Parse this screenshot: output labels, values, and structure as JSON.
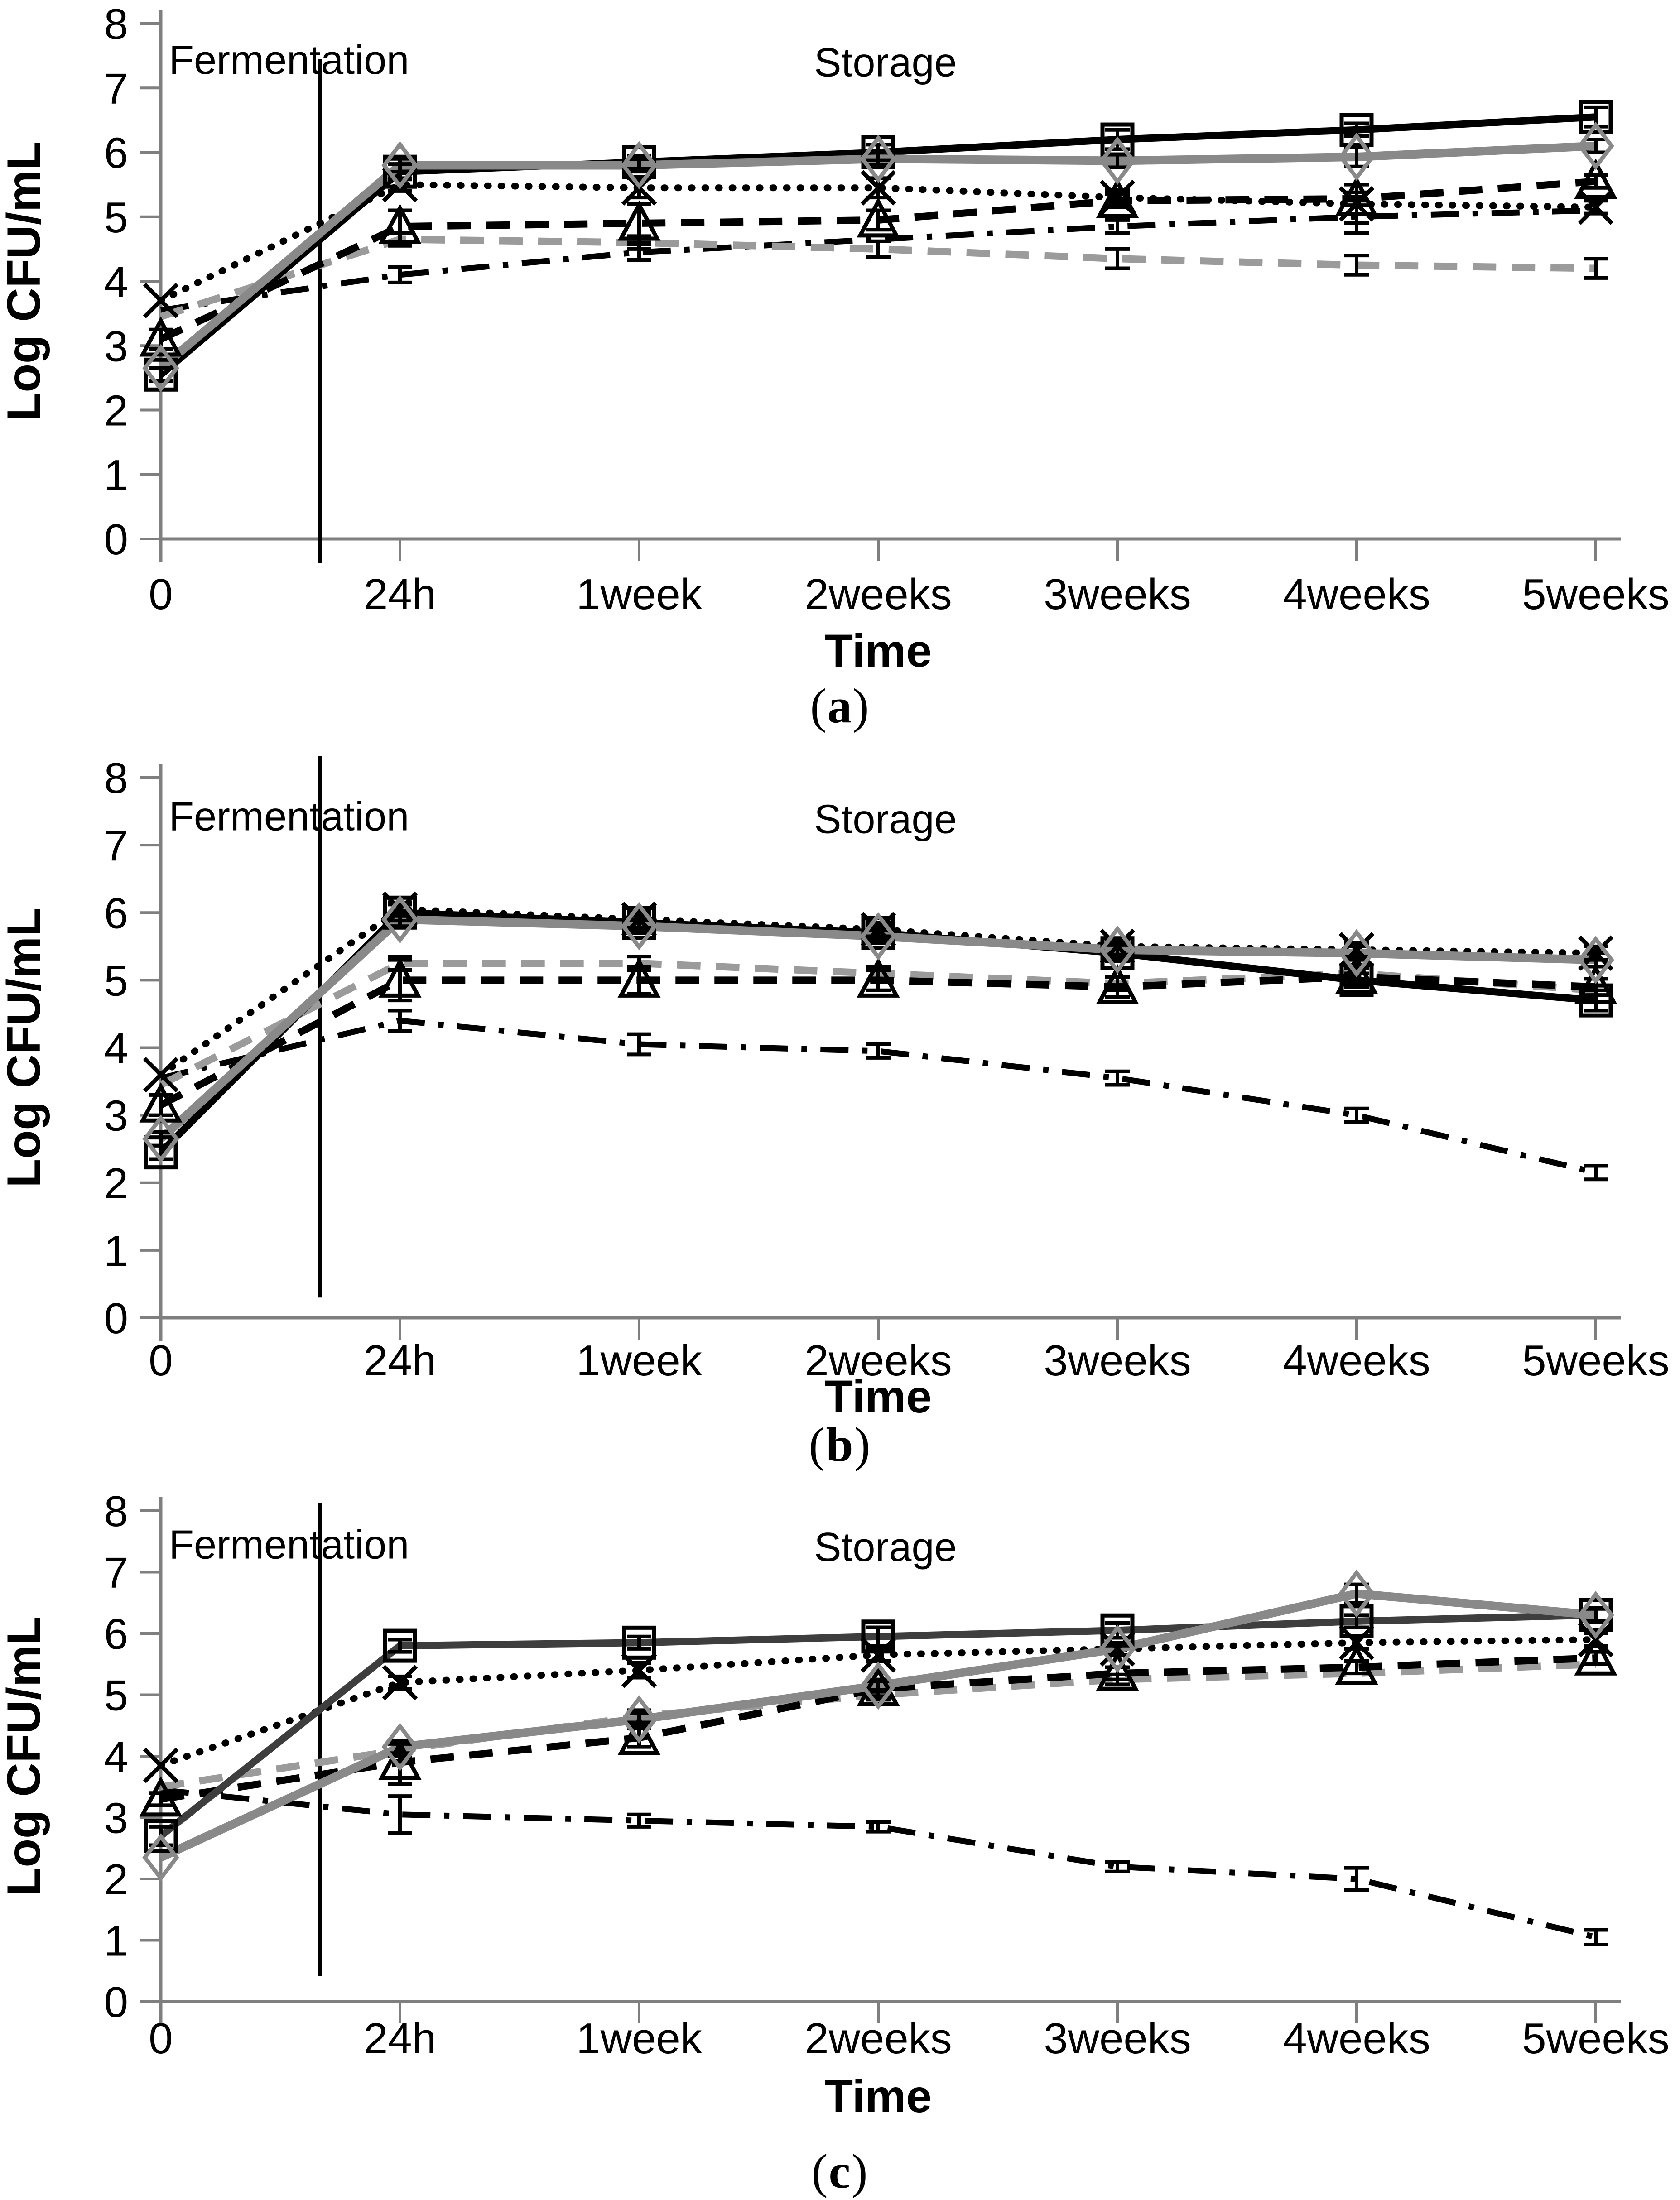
{
  "page": {
    "background": "#ffffff"
  },
  "axis_colors": {
    "axis_line": "#7f7f7f",
    "divider_line": "#000000",
    "error_bar": "#000000"
  },
  "chart_data": [
    {
      "id": "a",
      "type": "line",
      "caption": "(a)",
      "cap_open": "(",
      "caption_letter": "a",
      "cap_close": ")",
      "xlabel": "Time",
      "ylabel": "Log CFU/mL",
      "annotations": {
        "fermentation": "Fermentation",
        "storage": "Storage"
      },
      "categories": [
        "0",
        "24h",
        "1week",
        "2weeks",
        "3weeks",
        "4weeks",
        "5weeks"
      ],
      "yticks": [
        0,
        1,
        2,
        3,
        4,
        5,
        6,
        7,
        8
      ],
      "ylim": [
        0,
        8
      ],
      "legend": "none",
      "grid": "off",
      "series": [
        {
          "name": "solid-black-open-square",
          "line": "solid",
          "marker": "square",
          "color": "#000000",
          "values": [
            2.55,
            5.7,
            5.85,
            6.0,
            6.2,
            6.35,
            6.55
          ],
          "err": [
            0.1,
            0.12,
            0.1,
            0.12,
            0.15,
            0.1,
            0.15
          ]
        },
        {
          "name": "solid-gray-open-diamond",
          "line": "solid",
          "marker": "diamond",
          "color": "#898989",
          "values": [
            2.65,
            5.8,
            5.8,
            5.9,
            5.87,
            5.93,
            6.1
          ],
          "err": [
            0,
            0.1,
            0.1,
            0.1,
            0.1,
            0.15,
            0.1
          ]
        },
        {
          "name": "dotted-black-x",
          "line": "dotted",
          "marker": "x",
          "color": "#000000",
          "values": [
            3.7,
            5.5,
            5.45,
            5.45,
            5.3,
            5.2,
            5.15
          ],
          "err": [
            0,
            0.1,
            0.15,
            0.15,
            0.12,
            0.3,
            0.1
          ]
        },
        {
          "name": "dashed-black-open-triangle",
          "line": "dashed",
          "marker": "triangle",
          "color": "#000000",
          "values": [
            3.1,
            4.85,
            4.9,
            4.95,
            5.25,
            5.28,
            5.55
          ],
          "err": [
            0.15,
            0.25,
            0.3,
            0.15,
            0.1,
            0.1,
            0.1
          ]
        },
        {
          "name": "dashed-gray",
          "line": "dashed",
          "marker": "none",
          "color": "#9b9b9b",
          "values": [
            3.45,
            4.65,
            4.6,
            4.5,
            4.35,
            4.25,
            4.2
          ],
          "err": [
            0,
            0.1,
            0.1,
            0.12,
            0.15,
            0.15,
            0.15
          ]
        },
        {
          "name": "dash-dot-black",
          "line": "dashdot",
          "marker": "none",
          "color": "#000000",
          "values": [
            3.55,
            4.1,
            4.45,
            4.65,
            4.85,
            5.0,
            5.1
          ],
          "err": [
            0,
            0.12,
            0.12,
            0,
            0.1,
            0.25,
            0
          ]
        }
      ]
    },
    {
      "id": "b",
      "type": "line",
      "caption": "(b)",
      "cap_open": "(",
      "caption_letter": "b",
      "cap_close": ")",
      "xlabel": "Time",
      "ylabel": "Log CFU/mL",
      "annotations": {
        "fermentation": "Fermentation",
        "storage": "Storage"
      },
      "categories": [
        "0",
        "24h",
        "1week",
        "2weeks",
        "3weeks",
        "4weeks",
        "5weeks"
      ],
      "yticks": [
        0,
        1,
        2,
        3,
        4,
        5,
        6,
        7,
        8
      ],
      "ylim": [
        0,
        8
      ],
      "legend": "none",
      "grid": "off",
      "series": [
        {
          "name": "solid-black-open-square",
          "line": "solid",
          "marker": "square",
          "color": "#000000",
          "values": [
            2.45,
            6.0,
            5.85,
            5.7,
            5.4,
            5.0,
            4.7
          ],
          "err": [
            0.1,
            0.12,
            0.12,
            0.1,
            0.12,
            0.1,
            0.15
          ]
        },
        {
          "name": "solid-gray-open-diamond",
          "line": "solid",
          "marker": "diamond",
          "color": "#898989",
          "values": [
            2.65,
            5.9,
            5.8,
            5.65,
            5.45,
            5.4,
            5.3
          ],
          "err": [
            0.1,
            0.1,
            0.1,
            0.1,
            0.12,
            0.1,
            0.1
          ]
        },
        {
          "name": "dotted-black-x",
          "line": "dotted",
          "marker": "x",
          "color": "#000000",
          "values": [
            3.6,
            6.05,
            5.9,
            5.75,
            5.5,
            5.45,
            5.4
          ],
          "err": [
            0,
            0.1,
            0.12,
            0.1,
            0.12,
            0.1,
            0.1
          ]
        },
        {
          "name": "dashed-black-open-triangle",
          "line": "dashed",
          "marker": "triangle",
          "color": "#000000",
          "values": [
            3.15,
            5.0,
            5.0,
            5.0,
            4.9,
            5.05,
            4.9
          ],
          "err": [
            0.15,
            0.3,
            0.2,
            0.15,
            0.15,
            0.12,
            0.12
          ]
        },
        {
          "name": "dashed-gray",
          "line": "dashed",
          "marker": "none",
          "color": "#9b9b9b",
          "values": [
            3.45,
            5.25,
            5.25,
            5.1,
            4.95,
            5.1,
            4.85
          ],
          "err": [
            0,
            0.1,
            0.1,
            0.1,
            0.1,
            0,
            0
          ]
        },
        {
          "name": "dash-dot-black",
          "line": "dashdot",
          "marker": "none",
          "color": "#000000",
          "values": [
            3.55,
            4.4,
            4.05,
            3.95,
            3.55,
            3.0,
            2.15
          ],
          "err": [
            0,
            0.15,
            0.15,
            0.1,
            0.1,
            0.1,
            0.1
          ]
        }
      ]
    },
    {
      "id": "c",
      "type": "line",
      "caption": "(c)",
      "cap_open": "(",
      "caption_letter": "c",
      "cap_close": ")",
      "xlabel": "Time",
      "ylabel": "Log CFU/mL",
      "annotations": {
        "fermentation": "Fermentation",
        "storage": "Storage"
      },
      "categories": [
        "0",
        "24h",
        "1week",
        "2weeks",
        "3weeks",
        "4weeks",
        "5weeks"
      ],
      "yticks": [
        0,
        1,
        2,
        3,
        4,
        5,
        6,
        7,
        8
      ],
      "ylim": [
        0,
        8
      ],
      "legend": "none",
      "grid": "off",
      "series": [
        {
          "name": "solid-darkgray-open-square",
          "line": "solid",
          "marker": "square",
          "color": "#3e3e3e",
          "values": [
            2.7,
            5.8,
            5.85,
            5.95,
            6.05,
            6.2,
            6.3
          ],
          "err": [
            0.15,
            0.1,
            0.1,
            0.15,
            0.12,
            0.1,
            0.12
          ]
        },
        {
          "name": "solid-gray-open-diamond",
          "line": "solid",
          "marker": "diamond",
          "color": "#898989",
          "values": [
            2.35,
            4.15,
            4.6,
            5.15,
            5.75,
            6.65,
            6.3
          ],
          "err": [
            0,
            0.1,
            0.1,
            0.1,
            0.1,
            0.15,
            0.1
          ]
        },
        {
          "name": "dotted-black-x",
          "line": "dotted",
          "marker": "x",
          "color": "#000000",
          "values": [
            3.85,
            5.2,
            5.4,
            5.65,
            5.75,
            5.85,
            5.9
          ],
          "err": [
            0,
            0.1,
            0.12,
            0.1,
            0.1,
            0.1,
            0.1
          ]
        },
        {
          "name": "dashed-black-open-triangle",
          "line": "dashed",
          "marker": "triangle",
          "color": "#000000",
          "values": [
            3.3,
            3.9,
            4.3,
            5.1,
            5.35,
            5.45,
            5.6
          ],
          "err": [
            0.1,
            0.35,
            0.15,
            0.12,
            0.1,
            0.1,
            0.1
          ]
        },
        {
          "name": "dashed-gray",
          "line": "dashed",
          "marker": "none",
          "color": "#9b9b9b",
          "values": [
            3.5,
            4.1,
            4.65,
            5.0,
            5.25,
            5.35,
            5.5
          ],
          "err": [
            0,
            0.1,
            0.1,
            0.08,
            0.08,
            0,
            0
          ]
        },
        {
          "name": "dash-dot-black",
          "line": "dashdot",
          "marker": "none",
          "color": "#000000",
          "values": [
            3.45,
            3.05,
            2.95,
            2.85,
            2.2,
            2.0,
            1.05
          ],
          "err": [
            0,
            0.3,
            0.1,
            0.08,
            0.08,
            0.18,
            0.12
          ]
        }
      ]
    }
  ]
}
